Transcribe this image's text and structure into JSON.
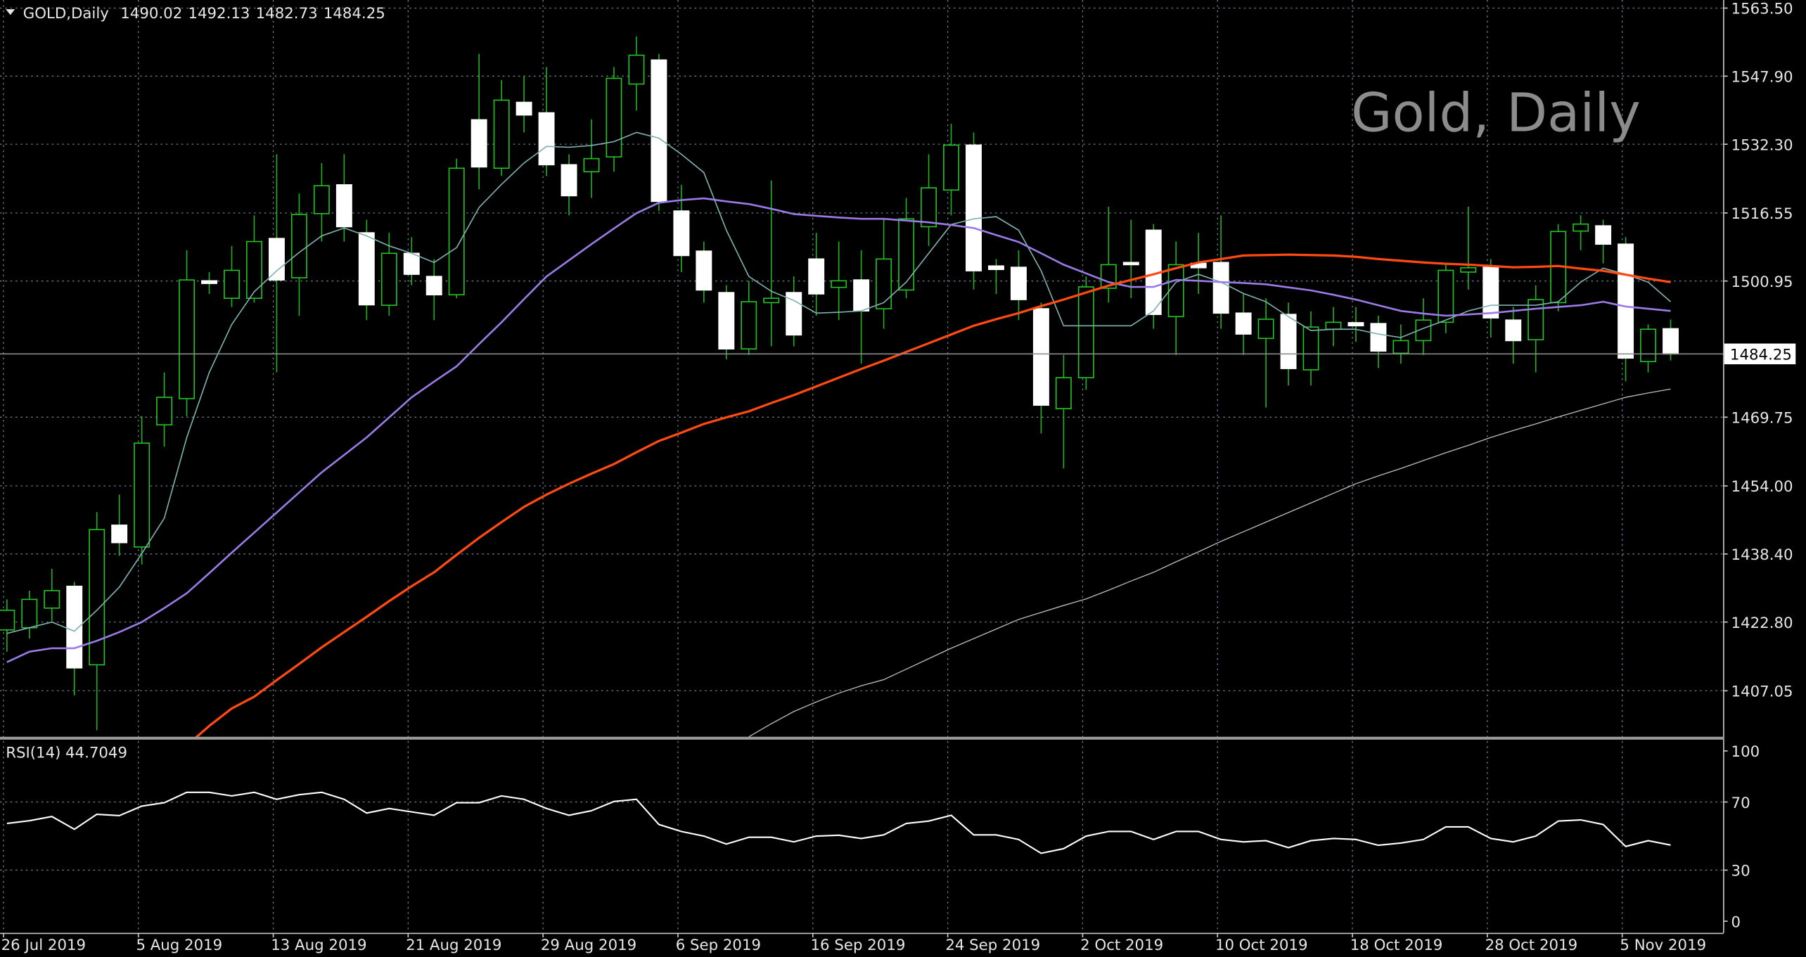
{
  "chart_data": {
    "type": "candlestick",
    "symbol": "GOLD,Daily",
    "title": "Gold, Daily",
    "xticks": [
      {
        "value": 0,
        "label": "26 Jul 2019"
      },
      {
        "value": 6,
        "label": "5 Aug 2019"
      },
      {
        "value": 12,
        "label": "13 Aug 2019"
      },
      {
        "value": 18,
        "label": "21 Aug 2019"
      },
      {
        "value": 24,
        "label": "29 Aug 2019"
      },
      {
        "value": 30,
        "label": "6 Sep 2019"
      },
      {
        "value": 36,
        "label": "16 Sep 2019"
      },
      {
        "value": 42,
        "label": "24 Sep 2019"
      },
      {
        "value": 48,
        "label": "2 Oct 2019"
      },
      {
        "value": 54,
        "label": "10 Oct 2019"
      },
      {
        "value": 60,
        "label": "18 Oct 2019"
      },
      {
        "value": 66,
        "label": "28 Oct 2019"
      },
      {
        "value": 72,
        "label": "5 Nov 2019"
      }
    ],
    "ylim": [
      1396.45,
      1565.35
    ],
    "yticks": [
      {
        "value": 1563.5,
        "label": "1563.50"
      },
      {
        "value": 1547.9,
        "label": "1547.90"
      },
      {
        "value": 1532.3,
        "label": "1532.30"
      },
      1516.55,
      1500.95,
      1469.75,
      {
        "value": 1454,
        "label": "1454.00"
      },
      {
        "value": 1438.4,
        "label": "1438.40"
      },
      {
        "value": 1422.8,
        "label": "1422.80"
      },
      1407.05
    ],
    "grid": true,
    "colors": {
      "bull_body": "#000000",
      "bear_body": "#ffffff",
      "bull_edge": "#22c322",
      "bear_edge": "#ffffff",
      "wick": "#22b022",
      "price_line": "#8c8c8c"
    },
    "open": [
      1421.0,
      1421.5,
      1426,
      1431.0,
      1413,
      1445,
      1440,
      1468,
      1474,
      1501,
      1497,
      1497,
      1510.7,
      1501.7,
      1516.4,
      1523,
      1512,
      1495.4,
      1507.3,
      1502,
      1497.8,
      1537.9,
      1526.8,
      1541.9,
      1539.5,
      1527.6,
      1526,
      1529.4,
      1546.1,
      1551.6,
      1517,
      1507.8,
      1498.3,
      1485.4,
      1496,
      1498.3,
      1506,
      1499.5,
      1501.2,
      1494.6,
      1498.9,
      1513.4,
      1521.8,
      1532.1,
      1504.4,
      1504.1,
      1494.6,
      1471.7,
      1478.8,
      1499.3,
      1505.2,
      1512.6,
      1492.8,
      1505,
      1505.2,
      1493.6,
      1487.8,
      1493.3,
      1480.6,
      1489.9,
      1491.4,
      1491.2,
      1484.4,
      1487.3,
      1491.5,
      1503,
      1504.1,
      1492,
      1487.5,
      1496,
      1512.4,
      1513.6,
      1509.4,
      1482.5,
      1490.02
    ],
    "high": [
      1428,
      1430,
      1435,
      1432,
      1448,
      1452,
      1470,
      1480,
      1508,
      1503,
      1509,
      1516,
      1530,
      1521,
      1528,
      1530,
      1515,
      1512,
      1511,
      1506,
      1529,
      1553,
      1547,
      1548,
      1550,
      1530,
      1538,
      1550,
      1557,
      1553,
      1523,
      1510,
      1500,
      1501,
      1524,
      1502,
      1512,
      1510,
      1508,
      1515,
      1520,
      1530,
      1537,
      1535,
      1506,
      1508,
      1496,
      1484,
      1502,
      1518,
      1515,
      1514,
      1510,
      1512,
      1516,
      1498,
      1497,
      1496,
      1494,
      1495,
      1495,
      1493,
      1491,
      1497,
      1505,
      1518,
      1506,
      1495,
      1500,
      1514,
      1516,
      1515,
      1511,
      1491,
      1492.13
    ],
    "low": [
      1416,
      1419,
      1423,
      1406,
      1398,
      1438,
      1436,
      1463,
      1470,
      1498,
      1495,
      1496,
      1480,
      1493,
      1510,
      1510,
      1492,
      1493,
      1500,
      1492,
      1497,
      1522,
      1525,
      1535,
      1525,
      1516,
      1520,
      1526,
      1540,
      1517,
      1503,
      1496,
      1483,
      1484,
      1486,
      1486,
      1493,
      1492,
      1482,
      1490,
      1497,
      1509,
      1516,
      1499,
      1498,
      1492,
      1466,
      1458,
      1476,
      1496,
      1497,
      1490,
      1484,
      1498,
      1490,
      1484,
      1472,
      1477,
      1477,
      1486,
      1487,
      1481,
      1482,
      1484,
      1489,
      1499,
      1488,
      1482,
      1480,
      1494,
      1508,
      1505,
      1478,
      1480,
      1482.73
    ],
    "close": [
      1425.5,
      1428,
      1430,
      1412.3,
      1444,
      1441,
      1463.8,
      1474.3,
      1501.2,
      1500.4,
      1503.4,
      1510,
      1501.2,
      1516.2,
      1522.8,
      1513.4,
      1495.5,
      1507.3,
      1502.5,
      1497.8,
      1526.8,
      1527.1,
      1542.4,
      1539,
      1527.6,
      1520.5,
      1529,
      1547.4,
      1552.7,
      1519.2,
      1506.8,
      1498.9,
      1485.4,
      1496.2,
      1497,
      1488.6,
      1498,
      1501,
      1494.1,
      1506,
      1515.2,
      1522.3,
      1532.1,
      1503.3,
      1503.6,
      1496.7,
      1472.5,
      1478.8,
      1499.6,
      1504.7,
      1504.7,
      1493.3,
      1504.7,
      1504,
      1493.6,
      1488.8,
      1492.2,
      1480.9,
      1490.4,
      1491.5,
      1490.7,
      1484.9,
      1487.3,
      1492,
      1503.4,
      1504,
      1492.5,
      1487.3,
      1496.7,
      1512.3,
      1514,
      1509.4,
      1483.3,
      1489.9,
      1484.25
    ],
    "series": [
      {
        "color": "#7fb0b0",
        "width": 1,
        "values": [
          1420.2,
          1421.5,
          1422.8,
          1420.7,
          1425.5,
          1430.8,
          1438.5,
          1446.6,
          1465.1,
          1480.0,
          1491.0,
          1498.5,
          1503.3,
          1507.5,
          1511.3,
          1513.1,
          1511.3,
          1509.0,
          1507.3,
          1505.2,
          1508.6,
          1517.8,
          1523.1,
          1528.0,
          1531.8,
          1531.6,
          1532.0,
          1532.9,
          1535.0,
          1533.7,
          1530.0,
          1525.8,
          1512.6,
          1502.0,
          1498.6,
          1496.5,
          1493.6,
          1493.8,
          1494.1,
          1496.0,
          1500.7,
          1507.3,
          1513.9,
          1515.2,
          1515.7,
          1512.6,
          1503.3,
          1490.7,
          1490.7,
          1490.7,
          1490.7,
          1494.1,
          1500.7,
          1502.5,
          1500.7,
          1498.1,
          1496.2,
          1492.8,
          1489.6,
          1489.9,
          1489.9,
          1488.8,
          1488.0,
          1490.1,
          1492.0,
          1494.1,
          1495.4,
          1495.4,
          1495.4,
          1496.2,
          1500.7,
          1503.9,
          1502.5,
          1500.7,
          1496.2
        ]
      },
      {
        "color": "#9b7be6",
        "width": 1.6,
        "values": [
          1413.6,
          1416.0,
          1416.8,
          1416.8,
          1418.5,
          1420.5,
          1422.8,
          1426.0,
          1429.4,
          1434.0,
          1438.7,
          1443.3,
          1447.9,
          1452.5,
          1457.1,
          1461.1,
          1465.1,
          1469.7,
          1474.3,
          1477.9,
          1481.4,
          1486.5,
          1491.5,
          1496.8,
          1502.0,
          1505.7,
          1509.4,
          1513.0,
          1516.5,
          1518.9,
          1519.5,
          1519.9,
          1519.2,
          1518.6,
          1517.5,
          1516.3,
          1515.9,
          1515.5,
          1515.2,
          1515.2,
          1514.8,
          1514.4,
          1513.8,
          1513.1,
          1511.5,
          1509.9,
          1507.3,
          1504.7,
          1502.7,
          1500.7,
          1499.6,
          1499.6,
          1501.2,
          1501.0,
          1500.7,
          1500.5,
          1500.2,
          1499.5,
          1498.8,
          1497.8,
          1496.7,
          1495.4,
          1494.1,
          1493.5,
          1493.0,
          1493.3,
          1493.6,
          1494.1,
          1494.6,
          1495.0,
          1495.4,
          1496.2,
          1495.1,
          1494.6,
          1494.1
        ]
      },
      {
        "color": "#ff4a14",
        "width": 2,
        "values": [
          null,
          null,
          null,
          null,
          null,
          null,
          null,
          null,
          1394.5,
          1399,
          1403,
          1405.7,
          1409.5,
          1413.2,
          1417.0,
          1420.5,
          1424.0,
          1427.6,
          1431.0,
          1434.2,
          1438.2,
          1442.1,
          1445.7,
          1449.2,
          1452.0,
          1454.5,
          1456.8,
          1459.0,
          1461.7,
          1464.3,
          1466.2,
          1468.2,
          1469.7,
          1471.1,
          1473.0,
          1474.8,
          1476.8,
          1478.8,
          1480.8,
          1482.7,
          1484.7,
          1486.7,
          1488.7,
          1490.7,
          1492.2,
          1493.6,
          1495.2,
          1496.7,
          1498.3,
          1499.9,
          1501.2,
          1502.5,
          1503.9,
          1505.2,
          1506.0,
          1506.8,
          1506.9,
          1507.0,
          1506.9,
          1506.8,
          1506.5,
          1506.0,
          1505.6,
          1505.2,
          1504.9,
          1504.7,
          1504.4,
          1504.1,
          1504.2,
          1504.4,
          1503.8,
          1503.3,
          1502.4,
          1501.5,
          1500.7
        ]
      },
      {
        "color": "#bdbdbd",
        "width": 0.8,
        "values": [
          null,
          null,
          null,
          null,
          null,
          null,
          null,
          null,
          null,
          null,
          null,
          null,
          null,
          null,
          null,
          null,
          null,
          null,
          null,
          null,
          null,
          null,
          null,
          null,
          null,
          null,
          null,
          null,
          null,
          null,
          null,
          null,
          null,
          1396.5,
          1399.5,
          1402.3,
          1404.5,
          1406.5,
          1408.2,
          1409.6,
          1412.0,
          1414.4,
          1416.8,
          1419.0,
          1421.2,
          1423.4,
          1425.0,
          1426.6,
          1428.1,
          1430.1,
          1432.2,
          1434.2,
          1436.6,
          1438.9,
          1441.3,
          1443.5,
          1445.7,
          1447.9,
          1450.1,
          1452.3,
          1454.5,
          1456.3,
          1458.0,
          1459.8,
          1461.6,
          1463.3,
          1465.1,
          1466.7,
          1468.2,
          1469.8,
          1471.3,
          1472.8,
          1474.3,
          1475.3,
          1476.2
        ]
      }
    ],
    "indicator": {
      "label": "RSI(14)",
      "color": "#ffffff",
      "ylim": [
        -6.8,
        106.8
      ],
      "yticks": [
        100,
        70,
        30,
        0
      ],
      "values": [
        57.4,
        59,
        61.5,
        54,
        62.8,
        62,
        67.6,
        69.6,
        75.7,
        75.7,
        73.6,
        75.7,
        71.6,
        74.3,
        75.7,
        71.6,
        63.5,
        66.2,
        64.2,
        62.2,
        69.6,
        69.6,
        73.6,
        71.6,
        66.2,
        62.2,
        64.9,
        70.3,
        71.6,
        56.8,
        52.7,
        50,
        45.3,
        49.3,
        49.3,
        46.6,
        50,
        50.5,
        48.6,
        50.7,
        57.4,
        58.8,
        62.2,
        50.7,
        50.7,
        48,
        39.9,
        42.6,
        50,
        52.7,
        52.7,
        48,
        52.7,
        52.7,
        48,
        46.6,
        47.3,
        43.2,
        47.3,
        48.6,
        48,
        44.6,
        45.9,
        48,
        55.4,
        55.4,
        48.6,
        46.6,
        50,
        58.8,
        59.5,
        56.8,
        43.9,
        47.3,
        44.7049
      ]
    }
  }
}
